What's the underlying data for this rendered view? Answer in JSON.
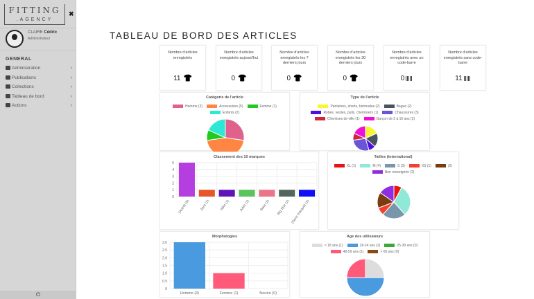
{
  "sidebar": {
    "logo_top": "FITTING",
    "logo_bottom": ".AGENCY",
    "user_last": "CLAIRE",
    "user_first": "Cédric",
    "user_role": "Administrateur",
    "section": "GENERAL",
    "items": [
      {
        "label": "Administration",
        "icon": "users-cog-icon"
      },
      {
        "label": "Publications",
        "icon": "upload-icon"
      },
      {
        "label": "Collections",
        "icon": "collection-icon"
      },
      {
        "label": "Tableau de bord",
        "icon": "dashboard-icon"
      },
      {
        "label": "Actions",
        "icon": "user-action-icon"
      }
    ],
    "power": "⏻"
  },
  "title": "TABLEAU DE BORD DES ARTICLES",
  "stats": [
    {
      "label": "Nombre d'articles enregistrés",
      "value": "11",
      "icon": "tshirt-icon"
    },
    {
      "label": "Nombre d'articles enregistrés aujourd'hui",
      "value": "0",
      "icon": "tshirt-icon"
    },
    {
      "label": "Nombre d'articles enregistrés les 7 derniers jours",
      "value": "0",
      "icon": "tshirt-icon"
    },
    {
      "label": "Nombre d'articles enregistrés les 30 derniers jours",
      "value": "0",
      "icon": "tshirt-icon"
    },
    {
      "label": "Nombre d'articles enregistrés avec un code-barre",
      "value": "0",
      "icon": "barcode-icon"
    },
    {
      "label": "Nombre d'articles enregistrés sans code-barre",
      "value": "11",
      "icon": "barcode-icon"
    }
  ],
  "chart_data": [
    {
      "id": "cat",
      "type": "pie",
      "title": "Catégorie de l'article",
      "labels": [
        "Homme (3)",
        "Accessoires (5)",
        "Femme (1)",
        "Enfants (2)"
      ],
      "values": [
        3,
        5,
        1,
        2
      ],
      "colors": [
        "#e0628c",
        "#ff8642",
        "#1ecb1e",
        "#2ee8d6"
      ]
    },
    {
      "id": "type",
      "type": "pie",
      "title": "Type de l'article",
      "labels": [
        "Pantalons, shorts, bermudas (2)",
        "Bague (2)",
        "Robes, vestes, pulls, chemisiers (1)",
        "Chaussures (3)",
        "Chemises de ville (1)",
        "Garçon de 2 à 16 ans (2)"
      ],
      "values": [
        2,
        2,
        1,
        3,
        1,
        2
      ],
      "colors": [
        "#f8f534",
        "#4a5461",
        "#4b0fe0",
        "#6b55d6",
        "#d0263d",
        "#f10fd6"
      ]
    },
    {
      "id": "brand",
      "type": "bar",
      "title": "Classement des 10 marques",
      "categories": [
        "(Autre) (5)",
        "Zara (1)",
        "Nike (1)",
        "Jules (1)",
        "Bata (1)",
        "Big Star (1)",
        "(Sans marque) (1)"
      ],
      "values": [
        5,
        1,
        1,
        1,
        1,
        1,
        1
      ],
      "colors": [
        "#b43ee0",
        "#e7562b",
        "#5e14b8",
        "#5ac35a",
        "#ea7488",
        "#52665e",
        "#1010f5"
      ],
      "ylim": [
        0,
        5
      ],
      "yticks": [
        "0",
        "1",
        "2",
        "3",
        "4",
        "5"
      ]
    },
    {
      "id": "size",
      "type": "pie",
      "title": "Tailles (international)",
      "labels": [
        "XL (1)",
        "M (4)",
        "S (3)",
        "XS (1)",
        "(2)",
        "Non renseignée (2)"
      ],
      "values": [
        1,
        4,
        3,
        1,
        2,
        2
      ],
      "colors": [
        "#e81414",
        "#8fe8d8",
        "#7a96aa",
        "#f53f2f",
        "#7a3d10",
        "#8f2ee0"
      ]
    },
    {
      "id": "morph",
      "type": "bar",
      "title": "Morphologies",
      "categories": [
        "Homme (3)",
        "Femme (1)",
        "Neutre (0)"
      ],
      "values": [
        3,
        1,
        0
      ],
      "colors": [
        "#4a9ae0",
        "#ff5a7a",
        "#cccccc"
      ],
      "ylim": [
        0,
        3
      ],
      "yticks": [
        "0",
        "0.5",
        "1.0",
        "1.5",
        "2.0",
        "2.5",
        "3.0"
      ]
    },
    {
      "id": "age",
      "type": "pie",
      "title": "Age des utilisateurs",
      "labels": [
        "< 18 ans (1)",
        "18-24 ans (2)",
        "25-39 ans (0)",
        "40-59 ans (1)",
        "> 60 ans (0)"
      ],
      "values": [
        1,
        2,
        0,
        1,
        0
      ],
      "colors": [
        "#dddddd",
        "#4a9ae0",
        "#3aa83a",
        "#ff5a7a",
        "#8a4a10"
      ]
    }
  ]
}
